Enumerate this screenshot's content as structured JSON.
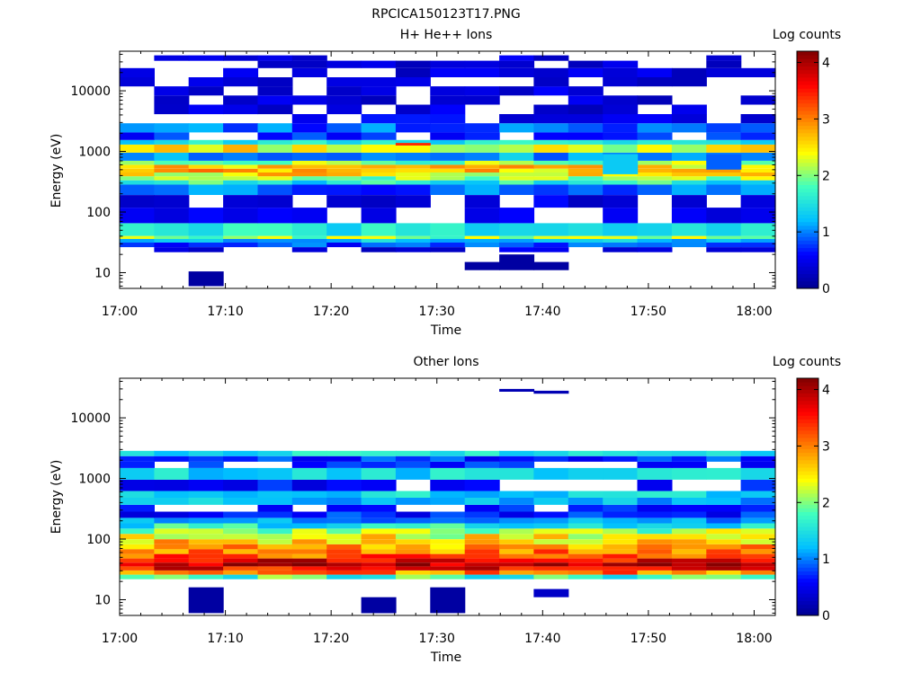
{
  "figure_title": "RPCICA150123T17.PNG",
  "colorscale": [
    "#00008f",
    "#0000ff",
    "#00bfff",
    "#40ffbf",
    "#ffff00",
    "#ff8000",
    "#ff0000",
    "#800000"
  ],
  "chart_data": [
    {
      "type": "heatmap",
      "title": "H+ He++ Ions",
      "xlabel": "Time",
      "ylabel": "Energy (eV)",
      "colorbar_label": "Log counts",
      "x_ticks": [
        "17:00",
        "17:10",
        "17:20",
        "17:30",
        "17:40",
        "17:50",
        "18:00"
      ],
      "y_ticks": [
        "10",
        "100",
        "1000",
        "10000"
      ],
      "y_scale": "log",
      "ylim": [
        5.5,
        45000
      ],
      "colorbar_ticks": [
        "0",
        "1",
        "2",
        "3",
        "4"
      ],
      "clim": [
        0,
        4.2
      ],
      "time_bins": 19,
      "bands": [
        {
          "e": 24,
          "v": 0.3
        },
        {
          "e": 29,
          "v": 0.8
        },
        {
          "e": 34,
          "v": 1.3
        },
        {
          "e": 38,
          "v": 2.0
        },
        {
          "e": 43,
          "v": 1.5
        },
        {
          "e": 100,
          "v": 0.4
        },
        {
          "e": 140,
          "v": 0.35
        },
        {
          "e": 260,
          "v": 0.9
        },
        {
          "e": 310,
          "v": 1.6
        },
        {
          "e": 360,
          "v": 2.1
        },
        {
          "e": 420,
          "v": 2.5
        },
        {
          "e": 480,
          "v": 2.7
        },
        {
          "e": 560,
          "v": 2.6
        },
        {
          "e": 650,
          "v": 2.0
        },
        {
          "e": 760,
          "v": 1.1
        },
        {
          "e": 1200,
          "v": 2.4
        },
        {
          "e": 1400,
          "v": 1.5
        },
        {
          "e": 1700,
          "v": 0.6
        },
        {
          "e": 2500,
          "v": 0.9
        },
        {
          "e": 3400,
          "v": 0.4
        },
        {
          "e": 5000,
          "v": 0.3
        },
        {
          "e": 7000,
          "v": 0.3
        },
        {
          "e": 10000,
          "v": 0.3
        },
        {
          "e": 14000,
          "v": 0.3
        },
        {
          "e": 20000,
          "v": 0.3
        },
        {
          "e": 28000,
          "v": 0.3
        },
        {
          "e": 35000,
          "v": 0.3
        }
      ],
      "extra_cells": [
        {
          "bin": 2,
          "e0": 6,
          "e1": 10.5,
          "v": 0.1
        },
        {
          "bin": 10,
          "e0": 11,
          "e1": 15,
          "v": 0.1
        },
        {
          "bin": 11,
          "e0": 11,
          "e1": 20,
          "v": 0.1
        },
        {
          "bin": 12,
          "e0": 11,
          "e1": 15,
          "v": 0.1
        },
        {
          "bin": 8,
          "e0": 1250,
          "e1": 1380,
          "v": 3.4
        },
        {
          "bin": 14,
          "e0": 420,
          "e1": 900,
          "v": 1.3
        },
        {
          "bin": 17,
          "e0": 500,
          "e1": 900,
          "v": 0.9
        }
      ]
    },
    {
      "type": "heatmap",
      "title": "Other Ions",
      "xlabel": "Time",
      "ylabel": "Energy (eV)",
      "colorbar_label": "Log counts",
      "x_ticks": [
        "17:00",
        "17:10",
        "17:20",
        "17:30",
        "17:40",
        "17:50",
        "18:00"
      ],
      "y_ticks": [
        "10",
        "100",
        "1000",
        "10000"
      ],
      "y_scale": "log",
      "ylim": [
        5.5,
        45000
      ],
      "colorbar_ticks": [
        "0",
        "1",
        "2",
        "3",
        "4"
      ],
      "clim": [
        0,
        4.2
      ],
      "time_bins": 19,
      "bands": [
        {
          "e": 24,
          "v": 1.8
        },
        {
          "e": 28,
          "v": 3.0
        },
        {
          "e": 33,
          "v": 3.6
        },
        {
          "e": 38,
          "v": 4.0
        },
        {
          "e": 44,
          "v": 3.7
        },
        {
          "e": 52,
          "v": 3.2
        },
        {
          "e": 62,
          "v": 3.0
        },
        {
          "e": 75,
          "v": 2.8
        },
        {
          "e": 90,
          "v": 2.6
        },
        {
          "e": 110,
          "v": 2.4
        },
        {
          "e": 135,
          "v": 2.1
        },
        {
          "e": 165,
          "v": 1.6
        },
        {
          "e": 200,
          "v": 1.1
        },
        {
          "e": 250,
          "v": 0.7
        },
        {
          "e": 320,
          "v": 0.6
        },
        {
          "e": 420,
          "v": 1.2
        },
        {
          "e": 550,
          "v": 1.4
        },
        {
          "e": 700,
          "v": 0.5
        },
        {
          "e": 1300,
          "v": 1.4
        },
        {
          "e": 1700,
          "v": 0.6
        },
        {
          "e": 2100,
          "v": 0.7
        },
        {
          "e": 2600,
          "v": 1.5
        }
      ],
      "extra_cells": [
        {
          "bin": 2,
          "e0": 6,
          "e1": 16,
          "v": 0.1
        },
        {
          "bin": 7,
          "e0": 6,
          "e1": 11,
          "v": 0.1
        },
        {
          "bin": 9,
          "e0": 6,
          "e1": 16,
          "v": 0.1
        },
        {
          "bin": 12,
          "e0": 11,
          "e1": 15,
          "v": 0.3
        },
        {
          "bin": 11,
          "e0": 27000,
          "e1": 30000,
          "v": 0.2
        },
        {
          "bin": 12,
          "e0": 25000,
          "e1": 28000,
          "v": 0.2
        }
      ]
    }
  ]
}
